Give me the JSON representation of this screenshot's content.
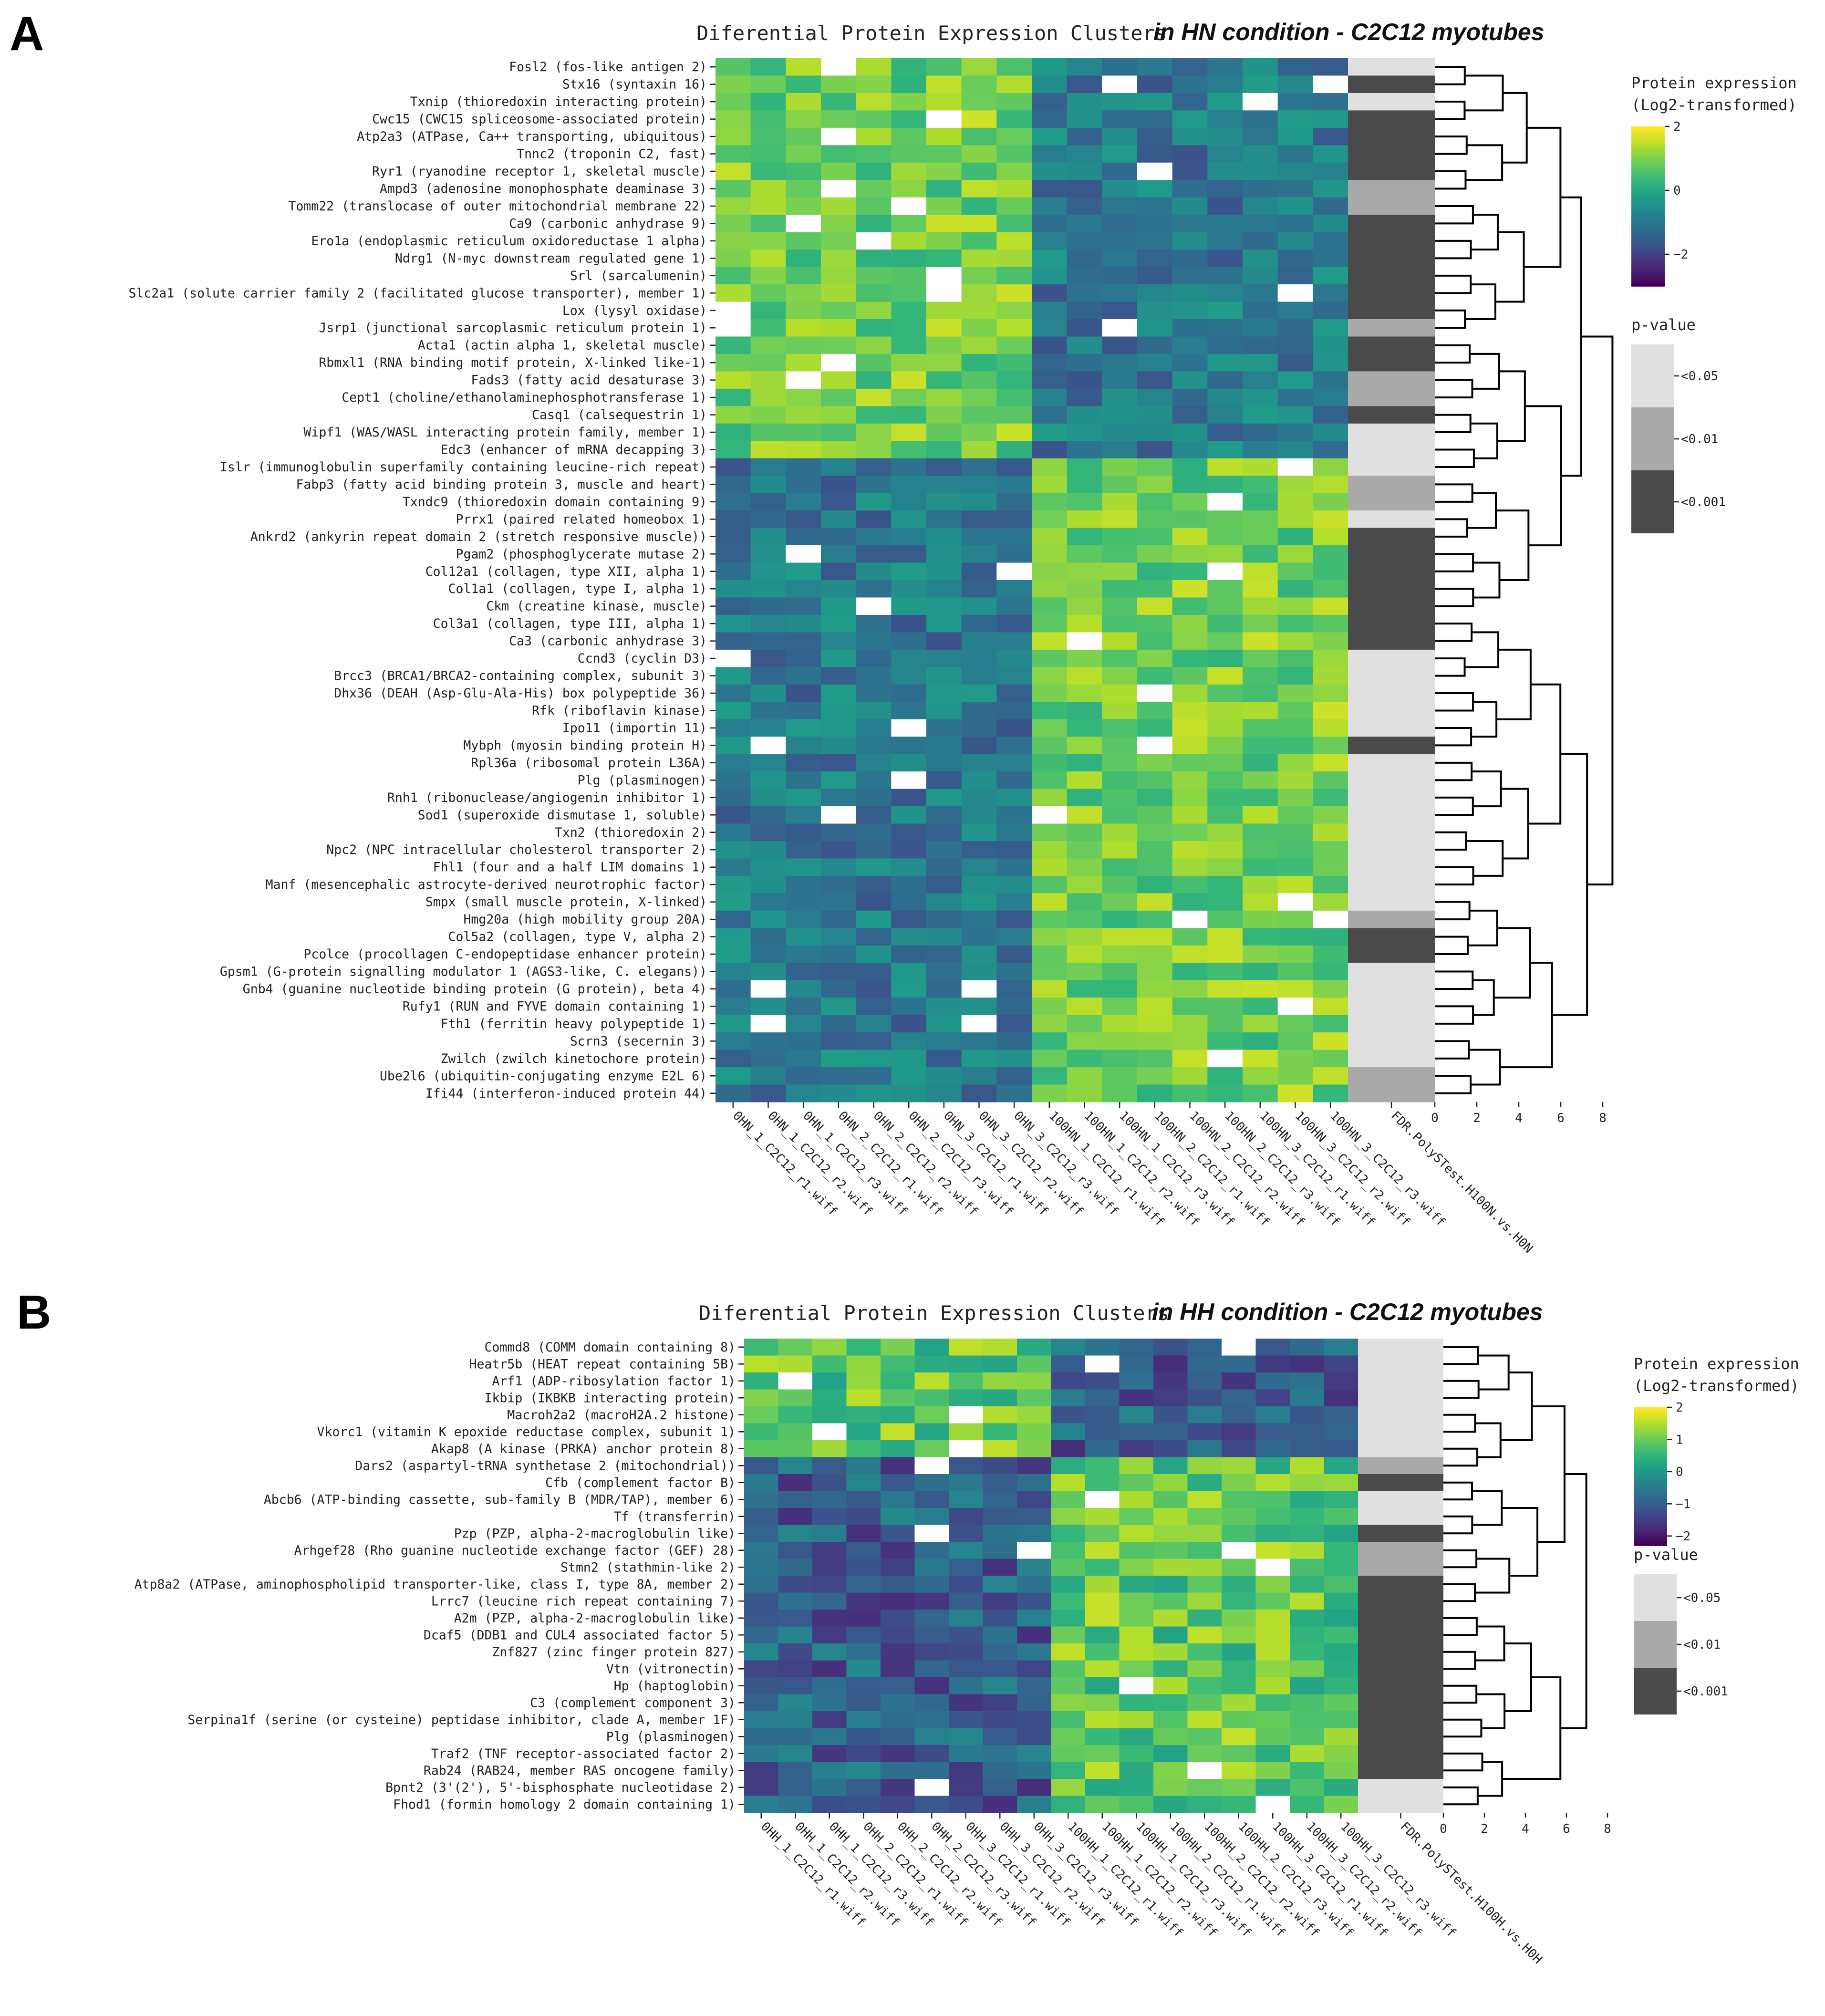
{
  "chart_data": [
    {
      "panel": "A",
      "type": "heatmap",
      "title": "Diferential Protein Expression Clusters",
      "title_emphasis": "in HN condition - C2C12 myotubes",
      "columns": [
        "0HN_1_C2C12_r1.wiff",
        "0HN_1_C2C12_r2.wiff",
        "0HN_1_C2C12_r3.wiff",
        "0HN_2_C2C12_r1.wiff",
        "0HN_2_C2C12_r2.wiff",
        "0HN_2_C2C12_r3.wiff",
        "0HN_3_C2C12_r1.wiff",
        "0HN_3_C2C12_r2.wiff",
        "0HN_3_C2C12_r3.wiff",
        "100HN_1_C2C12_r1.wiff",
        "100HN_1_C2C12_r2.wiff",
        "100HN_1_C2C12_r3.wiff",
        "100HN_2_C2C12_r1.wiff",
        "100HN_2_C2C12_r2.wiff",
        "100HN_2_C2C12_r3.wiff",
        "100HN_3_C2C12_r1.wiff",
        "100HN_3_C2C12_r2.wiff",
        "100HN_3_C2C12_r3.wiff"
      ],
      "annotation_column": "FDR.PolySTest.H100N.vs.H0N",
      "rows": [
        "Fosl2 (fos-like antigen 2)",
        "Stx16 (syntaxin 16)",
        "Txnip (thioredoxin interacting protein)",
        "Cwc15 (CWC15 spliceosome-associated protein)",
        "Atp2a3 (ATPase, Ca++ transporting, ubiquitous)",
        "Tnnc2 (troponin C2, fast)",
        "Ryr1 (ryanodine receptor 1, skeletal muscle)",
        "Ampd3 (adenosine monophosphate deaminase 3)",
        "Tomm22 (translocase of outer mitochondrial membrane 22)",
        "Ca9 (carbonic anhydrase 9)",
        "Ero1a (endoplasmic reticulum oxidoreductase 1 alpha)",
        "Ndrg1 (N-myc downstream regulated gene 1)",
        "Srl (sarcalumenin)",
        "Slc2a1 (solute carrier family 2 (facilitated glucose transporter), member 1)",
        "Lox (lysyl oxidase)",
        "Jsrp1 (junctional sarcoplasmic reticulum protein 1)",
        "Acta1 (actin alpha 1, skeletal muscle)",
        "Rbmxl1 (RNA binding motif protein, X-linked like-1)",
        "Fads3 (fatty acid desaturase 3)",
        "Cept1 (choline/ethanolaminephosphotransferase 1)",
        "Casq1 (calsequestrin 1)",
        "Wipf1 (WAS/WASL interacting protein family, member 1)",
        "Edc3 (enhancer of mRNA decapping 3)",
        "Islr (immunoglobulin superfamily containing leucine-rich repeat)",
        "Fabp3 (fatty acid binding protein 3, muscle and heart)",
        "Txndc9 (thioredoxin domain containing 9)",
        "Prrx1 (paired related homeobox 1)",
        "Ankrd2 (ankyrin repeat domain 2 (stretch responsive muscle))",
        "Pgam2 (phosphoglycerate mutase 2)",
        "Col12a1 (collagen, type XII, alpha 1)",
        "Col1a1 (collagen, type I, alpha 1)",
        "Ckm (creatine kinase, muscle)",
        "Col3a1 (collagen, type III, alpha 1)",
        "Ca3 (carbonic anhydrase 3)",
        "Ccnd3 (cyclin D3)",
        "Brcc3 (BRCA1/BRCA2-containing complex, subunit 3)",
        "Dhx36 (DEAH (Asp-Glu-Ala-His) box polypeptide 36)",
        "Rfk (riboflavin kinase)",
        "Ipo11 (importin 11)",
        "Mybph (myosin binding protein H)",
        "Rpl36a (ribosomal protein L36A)",
        "Plg (plasminogen)",
        "Rnh1 (ribonuclease/angiogenin inhibitor 1)",
        "Sod1 (superoxide dismutase 1, soluble)",
        "Txn2 (thioredoxin 2)",
        "Npc2 (NPC intracellular cholesterol transporter 2)",
        "Fhl1 (four and a half LIM domains 1)",
        "Manf (mesencephalic astrocyte-derived neurotrophic factor)",
        "Smpx (small muscle protein, X-linked)",
        "Hmg20a (high mobility group 20A)",
        "Col5a2 (collagen, type V, alpha 2)",
        "Pcolce (procollagen C-endopeptidase enhancer protein)",
        "Gpsm1 (G-protein signalling modulator 1 (AGS3-like, C. elegans))",
        "Gnb4 (guanine nucleotide binding protein (G protein), beta 4)",
        "Rufy1 (RUN and FYVE domain containing 1)",
        "Fth1 (ferritin heavy polypeptide 1)",
        "Scrn3 (secernin 3)",
        "Zwilch (zwilch kinetochore protein)",
        "Ube2l6 (ubiquitin-conjugating enzyme E2L 6)",
        "Ifi44 (interferon-induced protein 44)"
      ],
      "n_up_first_block": 23,
      "pvalue_category_per_row": [
        0,
        2,
        0,
        2,
        2,
        2,
        2,
        1,
        1,
        2,
        2,
        2,
        2,
        2,
        2,
        1,
        2,
        2,
        1,
        1,
        2,
        0,
        0,
        0,
        1,
        1,
        0,
        2,
        2,
        2,
        2,
        2,
        2,
        2,
        0,
        0,
        0,
        0,
        0,
        2,
        0,
        0,
        0,
        0,
        0,
        0,
        0,
        0,
        0,
        1,
        2,
        2,
        0,
        0,
        0,
        0,
        0,
        0,
        1,
        1
      ],
      "colorbar": {
        "title_line1": "Protein expression",
        "title_line2": "(Log2-transformed)",
        "ticks": [
          "2",
          "0",
          "−2"
        ],
        "range": [
          -3,
          2
        ]
      },
      "pvalue_legend": {
        "title": "p-value",
        "labels": [
          "<0.05",
          "<0.01",
          "<0.001"
        ],
        "colors": [
          "#e0e0e0",
          "#a9a9a9",
          "#4a4a4a"
        ]
      },
      "dendro_axis_ticks": [
        "0",
        "2",
        "4",
        "6",
        "8"
      ]
    },
    {
      "panel": "B",
      "type": "heatmap",
      "title": "Diferential Protein Expression Clusters",
      "title_emphasis": "in HH condition - C2C12 myotubes",
      "columns": [
        "0HH_1_C2C12_r1.wiff",
        "0HH_1_C2C12_r2.wiff",
        "0HH_1_C2C12_r3.wiff",
        "0HH_2_C2C12_r1.wiff",
        "0HH_2_C2C12_r2.wiff",
        "0HH_2_C2C12_r3.wiff",
        "0HH_3_C2C12_r1.wiff",
        "0HH_3_C2C12_r2.wiff",
        "0HH_3_C2C12_r3.wiff",
        "100HH_1_C2C12_r1.wiff",
        "100HH_1_C2C12_r2.wiff",
        "100HH_1_C2C12_r3.wiff",
        "100HH_2_C2C12_r1.wiff",
        "100HH_2_C2C12_r2.wiff",
        "100HH_2_C2C12_r3.wiff",
        "100HH_3_C2C12_r1.wiff",
        "100HH_3_C2C12_r2.wiff",
        "100HH_3_C2C12_r3.wiff"
      ],
      "annotation_column": "FDR.PolySTest.H100H.vs.H0H",
      "rows": [
        "Commd8 (COMM domain containing 8)",
        "Heatr5b (HEAT repeat containing 5B)",
        "Arf1 (ADP-ribosylation factor 1)",
        "Ikbip (IKBKB interacting protein)",
        "Macroh2a2 (macroH2A.2 histone)",
        "Vkorc1 (vitamin K epoxide reductase complex, subunit 1)",
        "Akap8 (A kinase (PRKA) anchor protein 8)",
        "Dars2 (aspartyl-tRNA synthetase 2 (mitochondrial))",
        "Cfb (complement factor B)",
        "Abcb6 (ATP-binding cassette, sub-family B (MDR/TAP), member 6)",
        "Tf (transferrin)",
        "Pzp (PZP, alpha-2-macroglobulin like)",
        "Arhgef28 (Rho guanine nucleotide exchange factor (GEF) 28)",
        "Stmn2 (stathmin-like 2)",
        "Atp8a2 (ATPase, aminophospholipid transporter-like, class I, type 8A, member 2)",
        "Lrrc7 (leucine rich repeat containing 7)",
        "A2m (PZP, alpha-2-macroglobulin like)",
        "Dcaf5 (DDB1 and CUL4 associated factor 5)",
        "Znf827 (zinc finger protein 827)",
        "Vtn (vitronectin)",
        "Hp (haptoglobin)",
        "C3 (complement component 3)",
        "Serpina1f (serine (or cysteine) peptidase inhibitor, clade A, member 1F)",
        "Plg (plasminogen)",
        "Traf2 (TNF receptor-associated factor 2)",
        "Rab24 (RAB24, member RAS oncogene family)",
        "Bpnt2 (3'(2'), 5'-bisphosphate nucleotidase 2)",
        "Fhod1 (formin homology 2 domain containing 1)"
      ],
      "n_up_first_block": 7,
      "pvalue_category_per_row": [
        0,
        0,
        0,
        0,
        0,
        0,
        0,
        1,
        2,
        0,
        0,
        2,
        1,
        1,
        2,
        2,
        2,
        2,
        2,
        2,
        2,
        2,
        2,
        2,
        2,
        2,
        0,
        0
      ],
      "colorbar": {
        "title_line1": "Protein expression",
        "title_line2": "(Log2-transformed)",
        "ticks": [
          "2",
          "1",
          "0",
          "−1",
          "−2"
        ],
        "range": [
          -2.3,
          2
        ]
      },
      "pvalue_legend": {
        "title": "p-value",
        "labels": [
          "<0.05",
          "<0.01",
          "<0.001"
        ],
        "colors": [
          "#e0e0e0",
          "#a9a9a9",
          "#4a4a4a"
        ]
      },
      "dendro_axis_ticks": [
        "0",
        "2",
        "4",
        "6",
        "8"
      ]
    }
  ]
}
